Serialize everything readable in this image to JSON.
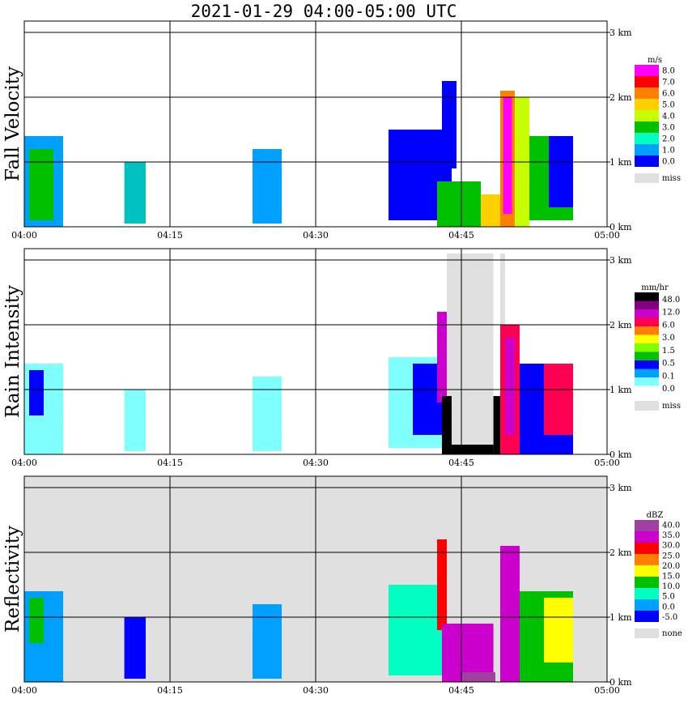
{
  "title": "2021-01-29   04:00-05:00 UTC",
  "colors": {
    "grid": "#000000",
    "missing": "#e0e0e0"
  },
  "chart_data": [
    {
      "type": "heatmap",
      "panel": "fall-velocity",
      "title": "2021-01-29   04:00-05:00 UTC",
      "ylabel": "Fall Velocity",
      "x_ticks": [
        "04:00",
        "04:15",
        "04:30",
        "04:45",
        "05:00"
      ],
      "y_ticks": [
        "0 km",
        "1 km",
        "2 km",
        "3 km"
      ],
      "ylim_km": [
        0,
        3
      ],
      "xlim_min": [
        0,
        60
      ],
      "background": "white",
      "colorbar": {
        "unit": "m/s",
        "labels": [
          "8.0",
          "7.0",
          "6.0",
          "5.0",
          "4.0",
          "3.0",
          "2.0",
          "1.0",
          "0.0"
        ],
        "colors": [
          "#ff00ff",
          "#ff0000",
          "#ff8000",
          "#ffd000",
          "#c8ff00",
          "#00c000",
          "#00ffc0",
          "#00a0ff",
          "#0000ff"
        ],
        "extra": [
          {
            "label": "miss",
            "color": "#e0e0e0"
          }
        ]
      },
      "echo_regions": [
        {
          "t0": 0.0,
          "t1": 4.0,
          "h0": 0.0,
          "h1": 1.4,
          "color": "#00a0ff"
        },
        {
          "t0": 0.5,
          "t1": 3.0,
          "h0": 0.1,
          "h1": 1.2,
          "color": "#00c000"
        },
        {
          "t0": 10.3,
          "t1": 12.5,
          "h0": 0.05,
          "h1": 1.0,
          "color": "#00c0c0"
        },
        {
          "t0": 23.5,
          "t1": 26.5,
          "h0": 0.05,
          "h1": 1.2,
          "color": "#00a0ff"
        },
        {
          "t0": 37.5,
          "t1": 44.0,
          "h0": 0.1,
          "h1": 1.5,
          "color": "#0000ff"
        },
        {
          "t0": 43.0,
          "t1": 44.5,
          "h0": 0.9,
          "h1": 2.25,
          "color": "#0000ff"
        },
        {
          "t0": 42.5,
          "t1": 47.0,
          "h0": 0.0,
          "h1": 0.7,
          "color": "#00c000"
        },
        {
          "t0": 47.0,
          "t1": 49.5,
          "h0": 0.0,
          "h1": 0.5,
          "color": "#ffd000"
        },
        {
          "t0": 49.0,
          "t1": 50.5,
          "h0": 0.0,
          "h1": 2.1,
          "color": "#ff8000"
        },
        {
          "t0": 49.3,
          "t1": 50.2,
          "h0": 0.2,
          "h1": 2.0,
          "color": "#ff00ff"
        },
        {
          "t0": 50.5,
          "t1": 52.0,
          "h0": 0.0,
          "h1": 2.0,
          "color": "#c8ff00"
        },
        {
          "t0": 52.0,
          "t1": 56.5,
          "h0": 0.1,
          "h1": 1.4,
          "color": "#00c000"
        },
        {
          "t0": 54.0,
          "t1": 56.5,
          "h0": 0.3,
          "h1": 1.4,
          "color": "#0000ff"
        }
      ]
    },
    {
      "type": "heatmap",
      "panel": "rain-intensity",
      "ylabel": "Rain Intensity",
      "x_ticks": [
        "04:00",
        "04:15",
        "04:30",
        "04:45",
        "05:00"
      ],
      "y_ticks": [
        "0 km",
        "1 km",
        "2 km",
        "3 km"
      ],
      "ylim_km": [
        0,
        3
      ],
      "xlim_min": [
        0,
        60
      ],
      "background": "white",
      "colorbar": {
        "unit": "mm/hr",
        "labels": [
          "48.0",
          "12.0",
          "6.0",
          "3.0",
          "1.5",
          "0.5",
          "0.1",
          "0.0"
        ],
        "colors": [
          "#000000",
          "#800080",
          "#cc00cc",
          "#ff0050",
          "#ff8000",
          "#ffff00",
          "#80ff00",
          "#00c000",
          "#0000ff",
          "#00a0ff",
          "#80ffff",
          "#ffffff"
        ],
        "extra": [
          {
            "label": "miss",
            "color": "#e0e0e0"
          }
        ]
      },
      "missing_regions": [
        {
          "t0": 43.5,
          "t1": 48.3,
          "h0": 0.0,
          "h1": 3.1
        },
        {
          "t0": 49.0,
          "t1": 49.5,
          "h0": 0.0,
          "h1": 3.1
        }
      ],
      "echo_regions": [
        {
          "t0": 0.0,
          "t1": 4.0,
          "h0": 0.0,
          "h1": 1.4,
          "color": "#80ffff"
        },
        {
          "t0": 0.5,
          "t1": 2.0,
          "h0": 0.6,
          "h1": 1.3,
          "color": "#0000ff"
        },
        {
          "t0": 10.3,
          "t1": 12.5,
          "h0": 0.05,
          "h1": 1.0,
          "color": "#80ffff"
        },
        {
          "t0": 23.5,
          "t1": 26.5,
          "h0": 0.05,
          "h1": 1.2,
          "color": "#80ffff"
        },
        {
          "t0": 37.5,
          "t1": 43.0,
          "h0": 0.1,
          "h1": 1.5,
          "color": "#80ffff"
        },
        {
          "t0": 40.0,
          "t1": 43.5,
          "h0": 0.3,
          "h1": 1.4,
          "color": "#0000ff"
        },
        {
          "t0": 42.5,
          "t1": 43.5,
          "h0": 0.8,
          "h1": 2.2,
          "color": "#cc00cc"
        },
        {
          "t0": 43.0,
          "t1": 44.0,
          "h0": 0.0,
          "h1": 0.9,
          "color": "#000000"
        },
        {
          "t0": 44.0,
          "t1": 48.3,
          "h0": 0.0,
          "h1": 0.15,
          "color": "#000000"
        },
        {
          "t0": 48.3,
          "t1": 49.0,
          "h0": 0.0,
          "h1": 0.9,
          "color": "#000000"
        },
        {
          "t0": 49.0,
          "t1": 51.0,
          "h0": 0.0,
          "h1": 2.0,
          "color": "#ff0050"
        },
        {
          "t0": 49.5,
          "t1": 50.5,
          "h0": 0.3,
          "h1": 1.8,
          "color": "#cc00cc"
        },
        {
          "t0": 51.0,
          "t1": 56.5,
          "h0": 0.0,
          "h1": 1.4,
          "color": "#0000ff"
        },
        {
          "t0": 53.5,
          "t1": 56.5,
          "h0": 0.3,
          "h1": 1.4,
          "color": "#ff0050"
        }
      ]
    },
    {
      "type": "heatmap",
      "panel": "reflectivity",
      "ylabel": "Reflectivity",
      "x_ticks": [
        "04:00",
        "04:15",
        "04:30",
        "04:45",
        "05:00"
      ],
      "y_ticks": [
        "0 km",
        "1 km",
        "2 km",
        "3 km"
      ],
      "ylim_km": [
        0,
        3
      ],
      "xlim_min": [
        0,
        60
      ],
      "background": "#e0e0e0",
      "colorbar": {
        "unit": "dBZ",
        "labels": [
          "40.0",
          "35.0",
          "30.0",
          "25.0",
          "20.0",
          "15.0",
          "10.0",
          "5.0",
          "0.0",
          "-5.0"
        ],
        "colors": [
          "#a040a0",
          "#cc00cc",
          "#ff0000",
          "#ff8000",
          "#ffff00",
          "#00c000",
          "#00ffc0",
          "#00a0ff",
          "#0000ff"
        ],
        "extra": [
          {
            "label": "none",
            "color": "#e0e0e0"
          }
        ]
      },
      "echo_regions": [
        {
          "t0": 0.0,
          "t1": 4.0,
          "h0": 0.0,
          "h1": 1.4,
          "color": "#00a0ff"
        },
        {
          "t0": 0.5,
          "t1": 2.0,
          "h0": 0.6,
          "h1": 1.3,
          "color": "#00c000"
        },
        {
          "t0": 10.3,
          "t1": 12.5,
          "h0": 0.05,
          "h1": 1.0,
          "color": "#0000ff"
        },
        {
          "t0": 23.5,
          "t1": 26.5,
          "h0": 0.05,
          "h1": 1.2,
          "color": "#00a0ff"
        },
        {
          "t0": 37.5,
          "t1": 43.0,
          "h0": 0.1,
          "h1": 1.5,
          "color": "#00ffc0"
        },
        {
          "t0": 42.5,
          "t1": 43.5,
          "h0": 0.8,
          "h1": 2.2,
          "color": "#ff0000"
        },
        {
          "t0": 43.0,
          "t1": 48.3,
          "h0": 0.0,
          "h1": 0.9,
          "color": "#cc00cc"
        },
        {
          "t0": 45.0,
          "t1": 48.5,
          "h0": 0.0,
          "h1": 0.15,
          "color": "#a040a0"
        },
        {
          "t0": 49.0,
          "t1": 51.0,
          "h0": 0.0,
          "h1": 2.1,
          "color": "#cc00cc"
        },
        {
          "t0": 51.0,
          "t1": 56.5,
          "h0": 0.0,
          "h1": 1.4,
          "color": "#00c000"
        },
        {
          "t0": 53.5,
          "t1": 56.5,
          "h0": 0.3,
          "h1": 1.3,
          "color": "#ffff00"
        }
      ]
    }
  ]
}
